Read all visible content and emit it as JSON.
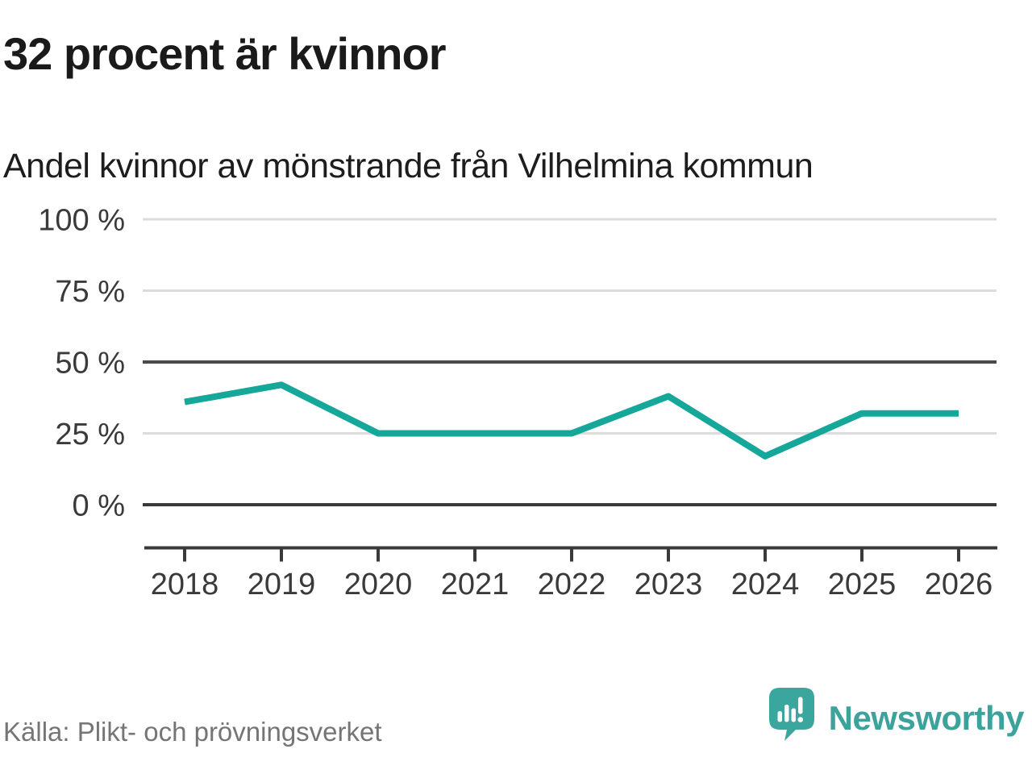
{
  "header": {
    "title": "32 procent är kvinnor",
    "subtitle": "Andel kvinnor av mönstrande från Vilhelmina kommun"
  },
  "chart_data": {
    "type": "line",
    "title": "32 procent är kvinnor",
    "subtitle": "Andel kvinnor av mönstrande från Vilhelmina kommun",
    "categories": [
      "2018",
      "2019",
      "2020",
      "2021",
      "2022",
      "2023",
      "2024",
      "2025",
      "2026"
    ],
    "values": [
      36,
      42,
      25,
      25,
      25,
      38,
      17,
      32,
      32
    ],
    "unit": "%",
    "xlabel": "",
    "ylabel": "",
    "ylim": [
      0,
      100
    ],
    "yticks": [
      0,
      25,
      50,
      75,
      100
    ],
    "ytick_labels": [
      "0 %",
      "25 %",
      "50 %",
      "75 %",
      "100 %"
    ],
    "grid": "horizontal",
    "legend": "none",
    "emphasized_gridlines": [
      0,
      50
    ]
  },
  "footer": {
    "source": "Källa: Plikt- och prövningsverket",
    "brand": "Newsworthy",
    "logo_icon": "newsworthy-speech-bubble-chart-icon"
  },
  "colors": {
    "line": "#14a79a",
    "grid_light": "#dcdcdc",
    "grid_dark": "#4a4a4a",
    "axis": "#3a3a3a",
    "text": "#3a3a3a",
    "title": "#1a1a1a",
    "subtitle": "#1d1d1d",
    "source": "#757575",
    "brand": "#3ba39c",
    "logo_bubble": "#3ba69e",
    "logo_glyph": "#ffffff"
  }
}
